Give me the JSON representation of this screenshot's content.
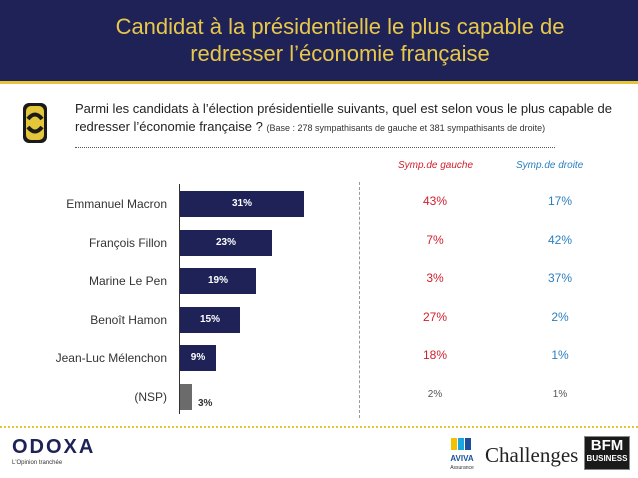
{
  "header": {
    "title_line1": "Candidat à la présidentielle le plus capable de",
    "title_line2": "redresser l’économie française"
  },
  "question": {
    "text": "Parmi les candidats à l’élection présidentielle suivants, quel est selon vous le plus capable de redresser l’économie française ?",
    "base": "(Base : 278 sympathisants de gauche et 381 sympathisants de droite)"
  },
  "columns": {
    "left_header": "Symp.de gauche",
    "right_header": "Symp.de droite"
  },
  "chart_data": {
    "type": "bar",
    "orientation": "horizontal",
    "categories": [
      "Emmanuel Macron",
      "François Fillon",
      "Marine Le Pen",
      "Benoît Hamon",
      "Jean-Luc Mélenchon",
      "(NSP)"
    ],
    "values": [
      31,
      23,
      19,
      15,
      9,
      3
    ],
    "value_labels": [
      "31%",
      "23%",
      "19%",
      "15%",
      "9%",
      "3%"
    ],
    "xlim": [
      0,
      100
    ],
    "colors": {
      "bar": "#1e2257",
      "nsp_bar": "#6b6b6b"
    }
  },
  "side_table": {
    "gauche": [
      "43%",
      "7%",
      "3%",
      "27%",
      "18%",
      "2%"
    ],
    "droite": [
      "17%",
      "42%",
      "37%",
      "2%",
      "1%",
      "1%"
    ]
  },
  "footer": {
    "odoxa": "ODOXA",
    "odoxa_tagline": "L'Opinion tranchée",
    "aviva": "AVIVA",
    "aviva_sub": "Assurance",
    "challenges": "Challenges",
    "bfm_line1": "BFM",
    "bfm_line2": "BUSINESS"
  },
  "colors": {
    "navy": "#1e2257",
    "gold": "#e3c63a",
    "red": "#d01f2a",
    "blue": "#2a7fbf"
  }
}
